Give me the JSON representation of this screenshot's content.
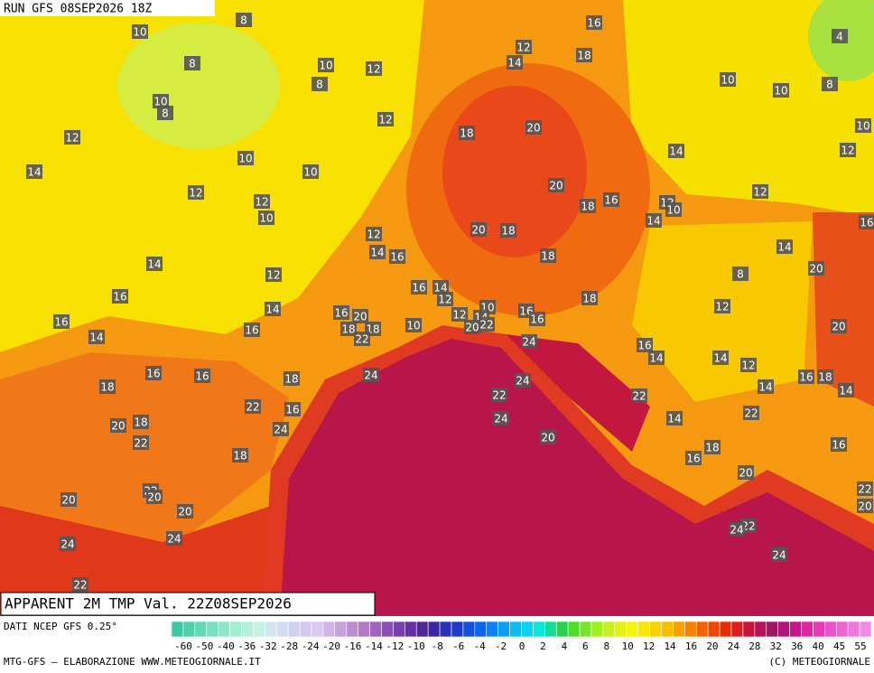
{
  "header": {
    "run": "RUN GFS 08SEP2026 18Z",
    "title": "APPARENT 2M TMP Val. 22Z08SEP2026"
  },
  "map_labels": [
    10,
    8,
    8,
    10,
    8,
    12,
    10,
    8,
    12,
    12,
    10,
    14,
    10,
    12,
    12,
    10,
    16,
    12,
    14,
    18,
    4,
    10,
    10,
    8,
    18,
    20,
    10,
    14,
    12,
    20,
    18,
    16,
    12,
    10,
    12,
    14,
    16,
    12,
    14,
    16,
    20,
    18,
    14,
    18,
    14,
    12,
    20,
    8,
    16,
    16,
    14,
    12,
    18,
    12,
    14,
    16,
    20,
    10,
    14,
    12,
    22,
    20,
    16,
    16,
    16,
    18,
    18,
    22,
    10,
    16,
    20,
    14,
    24,
    16,
    14,
    14,
    12,
    16,
    16,
    24,
    18,
    24,
    16,
    18,
    18,
    14,
    14,
    22,
    22,
    22,
    16,
    22,
    14,
    18,
    20,
    24,
    24,
    22,
    20,
    16,
    18,
    18,
    16,
    20,
    22,
    20,
    22,
    20,
    20,
    20,
    22,
    24,
    24,
    24,
    24,
    22,
    24
  ],
  "footer": {
    "source": "DATI NCEP GFS 0.25°",
    "credit": "MTG-GFS — ELABORAZIONE WWW.METEOGIORNALE.IT",
    "copyright": "(C) METEOGIORNALE"
  },
  "colorbar": {
    "labels": [
      -60,
      -50,
      -40,
      -36,
      -32,
      -28,
      -24,
      -20,
      -16,
      -14,
      -12,
      -10,
      -8,
      -6,
      -4,
      -2,
      0,
      2,
      4,
      6,
      8,
      10,
      12,
      14,
      16,
      20,
      24,
      28,
      32,
      36,
      40,
      45,
      55
    ],
    "colors": [
      "#3cc8a0",
      "#50d0aa",
      "#64d8b4",
      "#78e0be",
      "#8ce8c8",
      "#a0f0d2",
      "#b4f0dc",
      "#c8f0e6",
      "#d2e6f0",
      "#d2dcf0",
      "#d2d2f0",
      "#d2c8f0",
      "#dcc8f0",
      "#d2b4e6",
      "#c8a0dc",
      "#be8cd2",
      "#b478c8",
      "#a064be",
      "#8c50b4",
      "#7840aa",
      "#6432a0",
      "#502896",
      "#3c28a0",
      "#2832b4",
      "#1e3cc8",
      "#1450dc",
      "#0a64f0",
      "#0a82f5",
      "#0aa0f5",
      "#0abef5",
      "#0ad2f0",
      "#0ae6dc",
      "#14dc96",
      "#28d250",
      "#50dc28",
      "#78e628",
      "#a0f01e",
      "#c8f01e",
      "#e6f014",
      "#f5f50a",
      "#fae600",
      "#fad200",
      "#fabe00",
      "#faa000",
      "#fa8200",
      "#f56400",
      "#f04600",
      "#e62d0a",
      "#dc1e1e",
      "#c8143c",
      "#b4145a",
      "#a01464",
      "#b41478",
      "#c8148c",
      "#dc28a0",
      "#e63cb4",
      "#f050c8",
      "#f064d2",
      "#f078dc",
      "#f08ce6"
    ]
  }
}
